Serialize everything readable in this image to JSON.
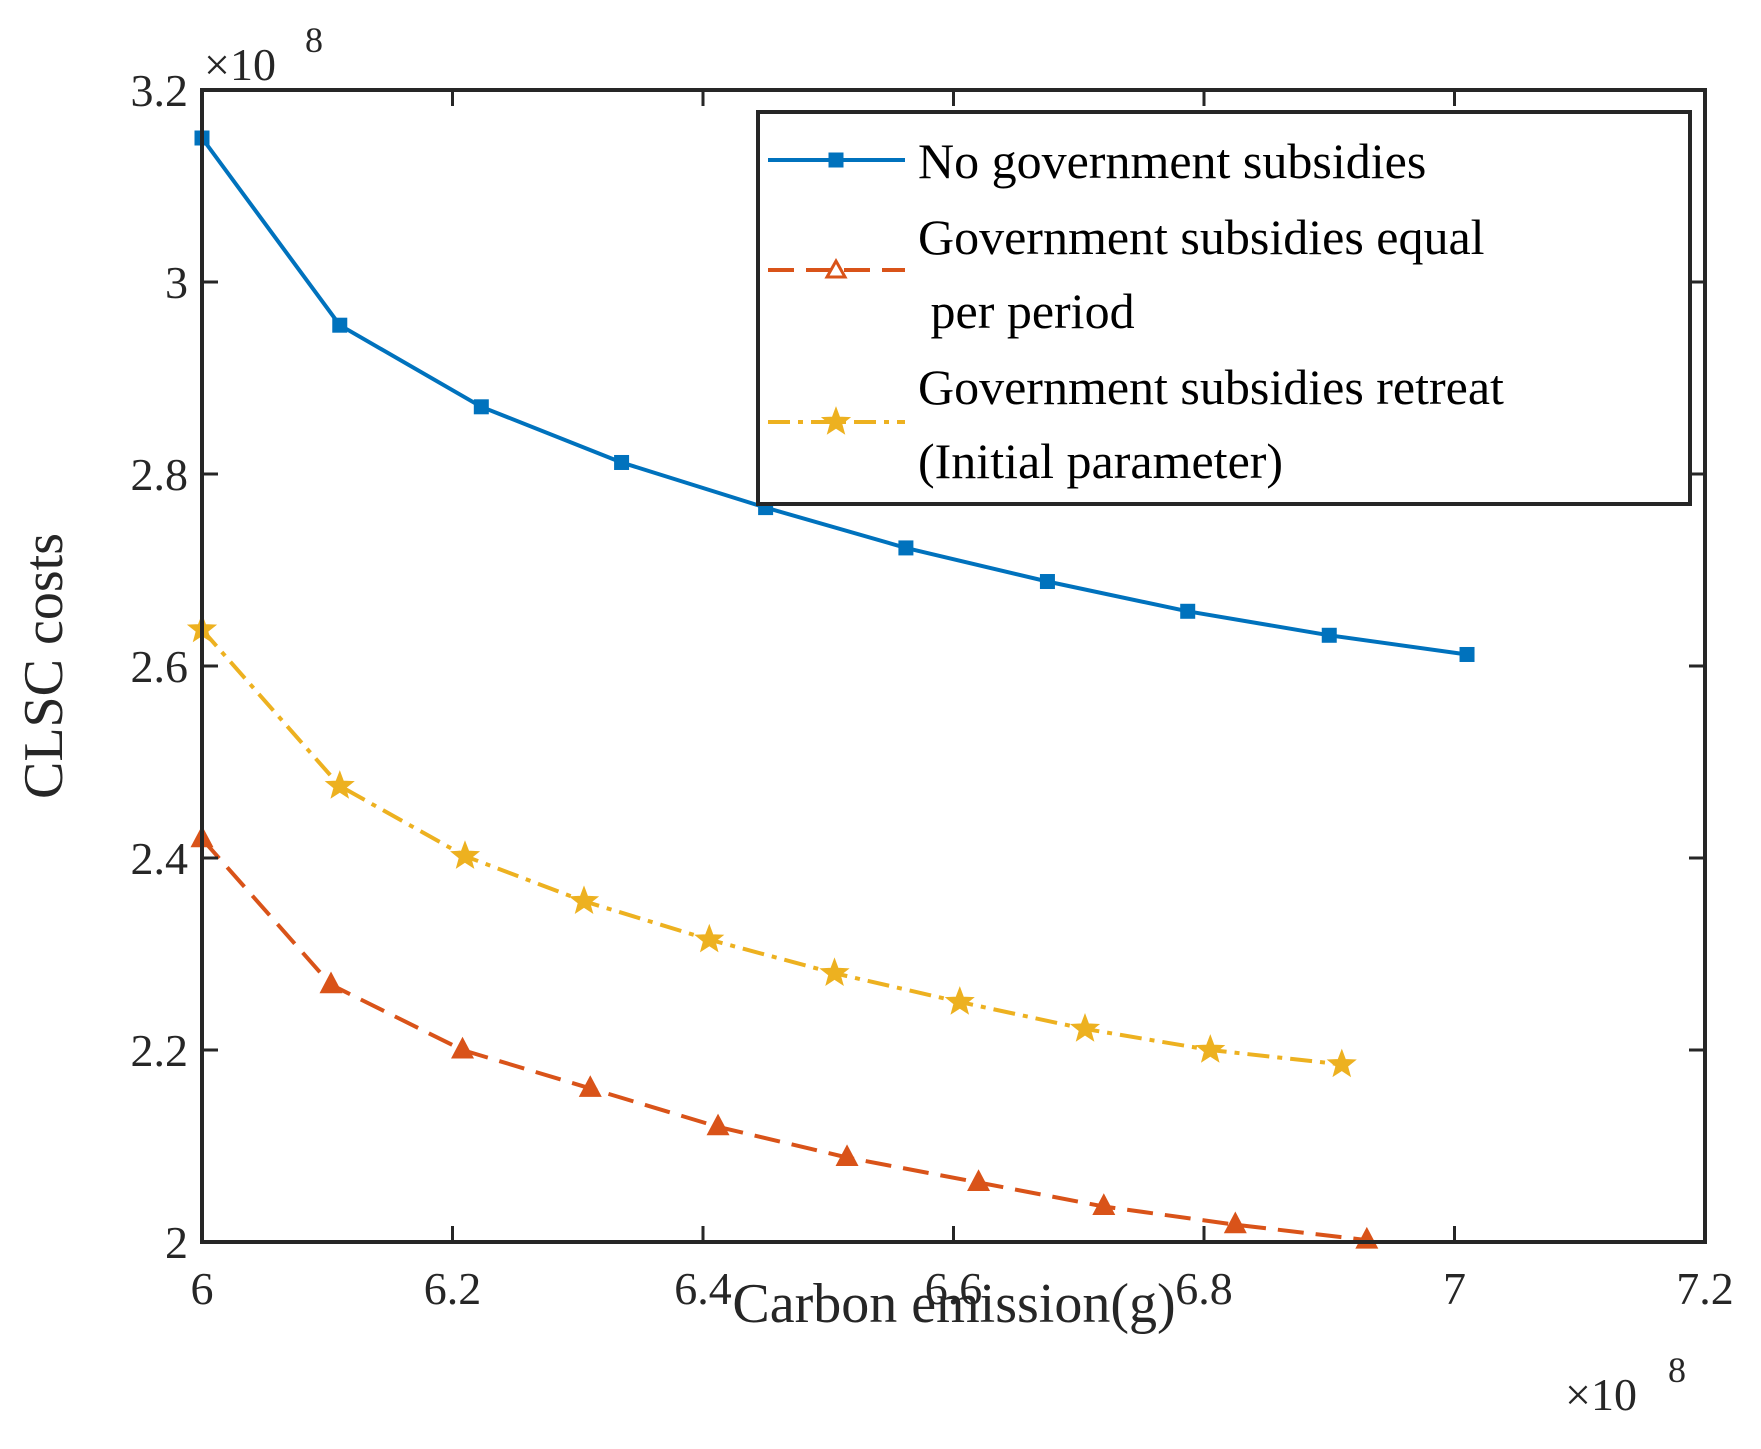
{
  "chart_data": {
    "type": "line",
    "xlabel": "Carbon emission(g)",
    "ylabel": "CLSC costs",
    "x_exponent_label": "×10",
    "x_exponent_power": "8",
    "y_exponent_label": "×10",
    "y_exponent_power": "8",
    "xlim": [
      6.0,
      7.2
    ],
    "ylim": [
      2.0,
      3.2
    ],
    "xticks": [
      6.0,
      6.2,
      6.4,
      6.6,
      6.8,
      7.0,
      7.2
    ],
    "xtick_labels": [
      "6",
      "6.2",
      "6.4",
      "6.6",
      "6.8",
      "7",
      "7.2"
    ],
    "yticks": [
      2.0,
      2.2,
      2.4,
      2.6,
      2.8,
      3.0,
      3.2
    ],
    "ytick_labels": [
      "2",
      "2.2",
      "2.4",
      "2.6",
      "2.8",
      "3",
      "3.2"
    ],
    "grid": false,
    "legend_position": "top-right",
    "series": [
      {
        "name": "No government subsidies",
        "legend_lines": [
          "No government subsidies"
        ],
        "color": "#0072BD",
        "line_style": "solid",
        "marker": "square",
        "x": [
          6.0,
          6.11,
          6.223,
          6.335,
          6.45,
          6.562,
          6.675,
          6.787,
          6.9,
          7.01
        ],
        "y": [
          3.15,
          2.955,
          2.87,
          2.812,
          2.765,
          2.723,
          2.688,
          2.657,
          2.632,
          2.612
        ]
      },
      {
        "name": "Government subsidies equal per period",
        "legend_lines": [
          "Government subsidies equal",
          " per period"
        ],
        "color": "#D95319",
        "line_style": "dashed",
        "marker": "triangle",
        "x": [
          6.0,
          6.103,
          6.208,
          6.31,
          6.412,
          6.515,
          6.62,
          6.72,
          6.825,
          6.93
        ],
        "y": [
          2.42,
          2.268,
          2.2,
          2.16,
          2.12,
          2.088,
          2.062,
          2.037,
          2.018,
          2.002
        ]
      },
      {
        "name": "Government subsidies retreat (Initial parameter)",
        "legend_lines": [
          "Government subsidies retreat",
          "(Initial parameter)"
        ],
        "color": "#EDB120",
        "line_style": "dashdot",
        "marker": "star",
        "x": [
          6.0,
          6.11,
          6.21,
          6.305,
          6.405,
          6.505,
          6.605,
          6.705,
          6.805,
          6.91
        ],
        "y": [
          2.638,
          2.475,
          2.402,
          2.355,
          2.315,
          2.28,
          2.25,
          2.222,
          2.2,
          2.185
        ]
      }
    ]
  }
}
